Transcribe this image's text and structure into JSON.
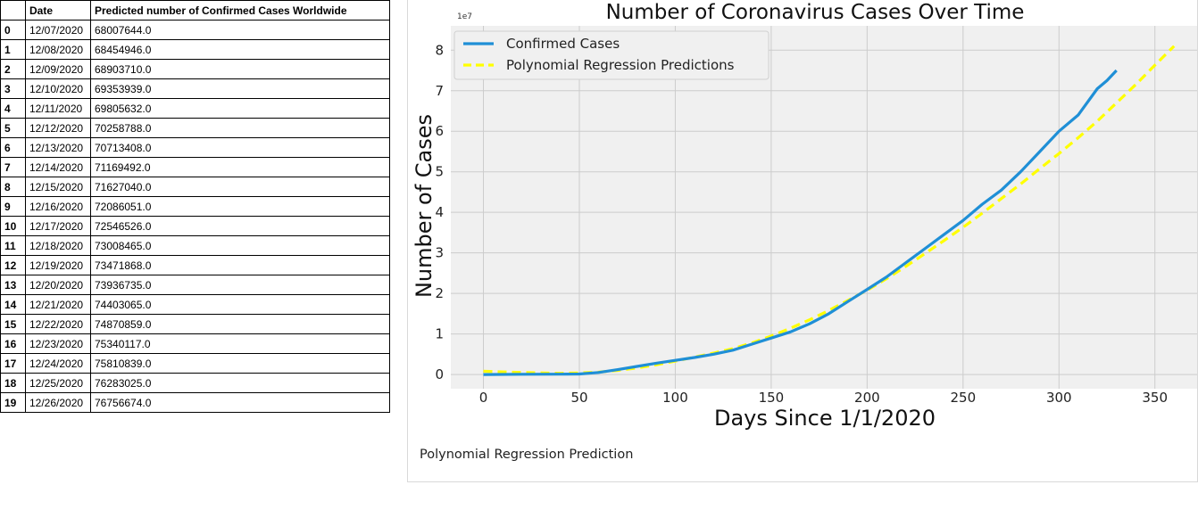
{
  "table": {
    "headers": [
      "",
      "Date",
      "Predicted number of Confirmed Cases Worldwide"
    ],
    "rows": [
      [
        "0",
        "12/07/2020",
        "68007644.0"
      ],
      [
        "1",
        "12/08/2020",
        "68454946.0"
      ],
      [
        "2",
        "12/09/2020",
        "68903710.0"
      ],
      [
        "3",
        "12/10/2020",
        "69353939.0"
      ],
      [
        "4",
        "12/11/2020",
        "69805632.0"
      ],
      [
        "5",
        "12/12/2020",
        "70258788.0"
      ],
      [
        "6",
        "12/13/2020",
        "70713408.0"
      ],
      [
        "7",
        "12/14/2020",
        "71169492.0"
      ],
      [
        "8",
        "12/15/2020",
        "71627040.0"
      ],
      [
        "9",
        "12/16/2020",
        "72086051.0"
      ],
      [
        "10",
        "12/17/2020",
        "72546526.0"
      ],
      [
        "11",
        "12/18/2020",
        "73008465.0"
      ],
      [
        "12",
        "12/19/2020",
        "73471868.0"
      ],
      [
        "13",
        "12/20/2020",
        "73936735.0"
      ],
      [
        "14",
        "12/21/2020",
        "74403065.0"
      ],
      [
        "15",
        "12/22/2020",
        "74870859.0"
      ],
      [
        "16",
        "12/23/2020",
        "75340117.0"
      ],
      [
        "17",
        "12/24/2020",
        "75810839.0"
      ],
      [
        "18",
        "12/25/2020",
        "76283025.0"
      ],
      [
        "19",
        "12/26/2020",
        "76756674.0"
      ]
    ]
  },
  "caption": "Polynomial Regression Prediction",
  "colors": {
    "confirmed": "#1f8fd6",
    "prediction": "#ffff00",
    "plot_background": "#f0f0f0",
    "grid": "#cccccc"
  },
  "chart_data": {
    "type": "line",
    "title": "Number of Coronavirus Cases Over Time",
    "xlabel": "Days Since 1/1/2020",
    "ylabel": "Number of Cases",
    "y_offset_label": "1e7",
    "xlim": [
      -17,
      372
    ],
    "ylim": [
      -3500000,
      86000000
    ],
    "x_ticks": [
      0,
      50,
      100,
      150,
      200,
      250,
      300,
      350
    ],
    "y_ticks": [
      0,
      1,
      2,
      3,
      4,
      5,
      6,
      7,
      8
    ],
    "y_tick_multiplier": 10000000,
    "grid": true,
    "legend_position": "top-left",
    "series": [
      {
        "name": "Confirmed Cases",
        "style": "solid",
        "x": [
          0,
          20,
          40,
          50,
          60,
          70,
          80,
          90,
          100,
          110,
          120,
          130,
          140,
          150,
          160,
          170,
          180,
          190,
          200,
          210,
          220,
          230,
          240,
          250,
          260,
          270,
          280,
          290,
          300,
          310,
          320,
          325,
          330
        ],
        "y": [
          0,
          60000,
          80000,
          120000,
          500000,
          1200000,
          2000000,
          2800000,
          3500000,
          4200000,
          5000000,
          6000000,
          7500000,
          9000000,
          10500000,
          12500000,
          15000000,
          18000000,
          21000000,
          24000000,
          27500000,
          31000000,
          34500000,
          38000000,
          42000000,
          45500000,
          50000000,
          55000000,
          60000000,
          64000000,
          70500000,
          72500000,
          75000000
        ]
      },
      {
        "name": "Polynomial Regression Predictions",
        "style": "dashed",
        "x": [
          0,
          20,
          40,
          50,
          60,
          70,
          80,
          90,
          100,
          110,
          120,
          130,
          140,
          150,
          160,
          170,
          180,
          190,
          200,
          210,
          220,
          230,
          240,
          250,
          260,
          270,
          280,
          290,
          300,
          310,
          320,
          330,
          340,
          350,
          360
        ],
        "y": [
          800000,
          500000,
          300000,
          400000,
          600000,
          1000000,
          1600000,
          2400000,
          3300000,
          4300000,
          5300000,
          6400000,
          7800000,
          9500000,
          11400000,
          13500000,
          15800000,
          18300000,
          20800000,
          23600000,
          26600000,
          29800000,
          33000000,
          36300000,
          39800000,
          43400000,
          47000000,
          50800000,
          54500000,
          58400000,
          62500000,
          67000000,
          71500000,
          76300000,
          81000000
        ]
      }
    ]
  }
}
